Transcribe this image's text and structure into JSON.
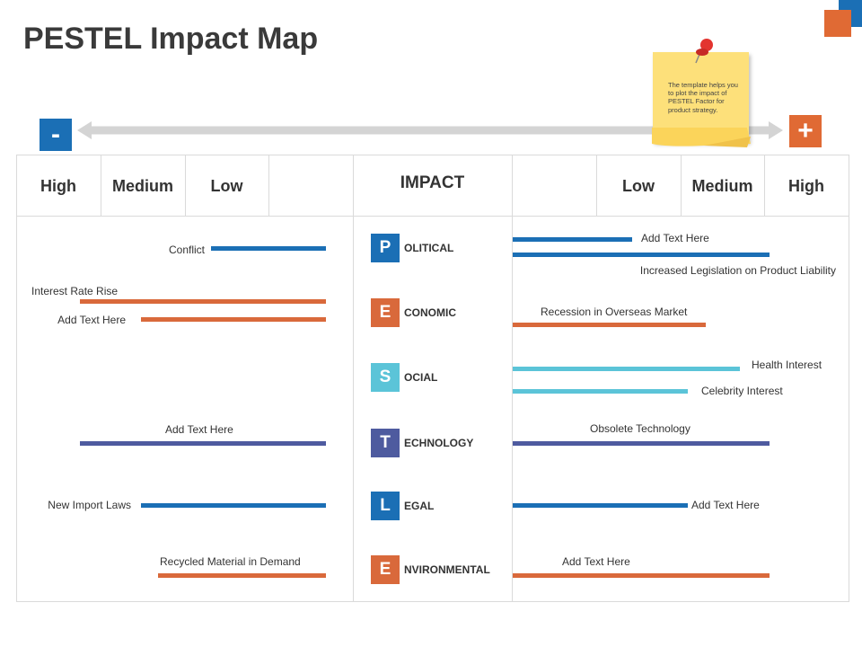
{
  "title": "PESTEL Impact Map",
  "scale": {
    "minus": "-",
    "plus": "+"
  },
  "note": {
    "text": "The template helps you to plot the impact of PESTEL Factor for product strategy."
  },
  "headers": {
    "left": [
      "High",
      "Medium",
      "Low"
    ],
    "center": "IMPACT",
    "right": [
      "Low",
      "Medium",
      "High"
    ]
  },
  "colors": {
    "blue": "#1b6fb5",
    "orange": "#d9693b",
    "cyan": "#5bc4d8",
    "indigo": "#4e5b9f",
    "grid": "#dadada"
  },
  "factors": [
    {
      "letter": "P",
      "rest": "OLITICAL",
      "color": "#1b6fb5",
      "left": [
        {
          "label": "Conflict"
        }
      ],
      "right": [
        {
          "label": "Add Text Here"
        },
        {
          "label": "Increased Legislation on Product Liability"
        }
      ]
    },
    {
      "letter": "E",
      "rest": "CONOMIC",
      "color": "#d9693b",
      "left": [
        {
          "label": "Interest Rate Rise"
        },
        {
          "label": "Add Text Here"
        }
      ],
      "right": [
        {
          "label": "Recession in Overseas Market"
        }
      ]
    },
    {
      "letter": "S",
      "rest": "OCIAL",
      "color": "#5bc4d8",
      "left": [],
      "right": [
        {
          "label": "Health Interest"
        },
        {
          "label": "Celebrity Interest"
        }
      ]
    },
    {
      "letter": "T",
      "rest": "ECHNOLOGY",
      "color": "#4e5b9f",
      "left": [
        {
          "label": "Add Text Here"
        }
      ],
      "right": [
        {
          "label": "Obsolete Technology"
        }
      ]
    },
    {
      "letter": "L",
      "rest": "EGAL",
      "color": "#1b6fb5",
      "left": [
        {
          "label": "New Import Laws"
        }
      ],
      "right": [
        {
          "label": "Add Text Here"
        }
      ]
    },
    {
      "letter": "E",
      "rest": "NVIRONMENTAL",
      "color": "#d9693b",
      "left": [
        {
          "label": "Recycled Material in Demand"
        }
      ],
      "right": [
        {
          "label": "Add Text Here"
        }
      ]
    }
  ]
}
